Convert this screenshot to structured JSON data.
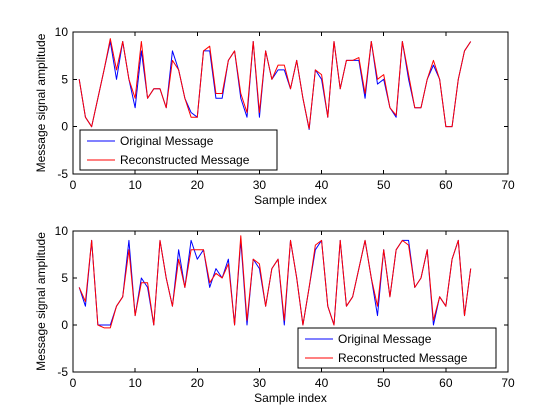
{
  "chart_data": [
    {
      "type": "line",
      "xlabel": "Sample index",
      "ylabel": "Message signal amplitude",
      "xlim": [
        0,
        70
      ],
      "ylim": [
        -5,
        10
      ],
      "xticks": [
        "0",
        "10",
        "20",
        "30",
        "40",
        "50",
        "60",
        "70"
      ],
      "yticks": [
        "-5",
        "0",
        "5",
        "10"
      ],
      "legend_position": "bottom-left",
      "series": [
        {
          "name": "Original Message",
          "color": "#0000ff",
          "x": [
            1,
            2,
            3,
            4,
            5,
            6,
            7,
            8,
            9,
            10,
            11,
            12,
            13,
            14,
            15,
            16,
            17,
            18,
            19,
            20,
            21,
            22,
            23,
            24,
            25,
            26,
            27,
            28,
            29,
            30,
            31,
            32,
            33,
            34,
            35,
            36,
            37,
            38,
            39,
            40,
            41,
            42,
            43,
            44,
            45,
            46,
            47,
            48,
            49,
            50,
            51,
            52,
            53,
            54,
            55,
            56,
            57,
            58,
            59,
            60,
            61,
            62,
            63,
            64
          ],
          "values": [
            5,
            1,
            0,
            3,
            6,
            9,
            5,
            9,
            5,
            2,
            8,
            3,
            4,
            4,
            2,
            8,
            6,
            3,
            1.5,
            1,
            8,
            8,
            3,
            3,
            7,
            8,
            3,
            1,
            9,
            1,
            8,
            5,
            6,
            6,
            4,
            7,
            3,
            -0.3,
            6,
            5,
            1,
            9,
            4,
            7,
            7,
            7,
            3,
            9,
            4.5,
            5,
            2,
            1,
            9,
            5,
            2,
            2,
            5,
            6.5,
            5,
            0,
            0,
            5,
            8,
            9
          ]
        },
        {
          "name": "Reconstructed Message",
          "color": "#ff0000",
          "x": [
            1,
            2,
            3,
            4,
            5,
            6,
            7,
            8,
            9,
            10,
            11,
            12,
            13,
            14,
            15,
            16,
            17,
            18,
            19,
            20,
            21,
            22,
            23,
            24,
            25,
            26,
            27,
            28,
            29,
            30,
            31,
            32,
            33,
            34,
            35,
            36,
            37,
            38,
            39,
            40,
            41,
            42,
            43,
            44,
            45,
            46,
            47,
            48,
            49,
            50,
            51,
            52,
            53,
            54,
            55,
            56,
            57,
            58,
            59,
            60,
            61,
            62,
            63,
            64
          ],
          "values": [
            5,
            1,
            0,
            3,
            6,
            9.3,
            6,
            9,
            5,
            3,
            9,
            3,
            4,
            4,
            2,
            7,
            6,
            3,
            1,
            1,
            8,
            8.5,
            3.5,
            3.5,
            7,
            8,
            3.5,
            1.5,
            9,
            1.5,
            8,
            5,
            6.5,
            6.5,
            4,
            7,
            3,
            -0.2,
            6,
            5.5,
            1,
            9,
            4,
            7,
            7,
            7.3,
            3.5,
            9,
            5,
            5.5,
            2,
            1.2,
            9,
            5.5,
            2,
            2,
            5,
            7,
            5,
            0,
            0,
            5,
            8,
            9
          ]
        }
      ]
    },
    {
      "type": "line",
      "xlabel": "Sample index",
      "ylabel": "Message signal amplitude",
      "xlim": [
        0,
        70
      ],
      "ylim": [
        -5,
        10
      ],
      "xticks": [
        "0",
        "10",
        "20",
        "30",
        "40",
        "50",
        "60",
        "70"
      ],
      "yticks": [
        "-5",
        "0",
        "5",
        "10"
      ],
      "legend_position": "bottom-right",
      "series": [
        {
          "name": "Original Message",
          "color": "#0000ff",
          "x": [
            1,
            2,
            3,
            4,
            5,
            6,
            7,
            8,
            9,
            10,
            11,
            12,
            13,
            14,
            15,
            16,
            17,
            18,
            19,
            20,
            21,
            22,
            23,
            24,
            25,
            26,
            27,
            28,
            29,
            30,
            31,
            32,
            33,
            34,
            35,
            36,
            37,
            38,
            39,
            40,
            41,
            42,
            43,
            44,
            45,
            46,
            47,
            48,
            49,
            50,
            51,
            52,
            53,
            54,
            55,
            56,
            57,
            58,
            59,
            60,
            61,
            62,
            63,
            64
          ],
          "values": [
            4,
            2,
            9,
            0,
            0,
            0,
            2,
            3,
            9,
            1,
            5,
            4,
            0,
            9,
            5,
            2,
            8,
            4,
            9,
            7,
            8,
            4,
            6,
            5,
            7,
            0,
            9,
            0,
            7,
            6,
            2,
            6,
            7,
            0,
            9,
            5,
            0,
            4,
            8,
            9,
            2,
            0,
            9,
            2,
            3,
            6,
            9,
            5,
            1,
            8,
            3,
            8,
            9,
            9,
            4,
            5,
            8,
            0,
            3,
            2,
            7,
            9,
            1,
            6
          ]
        },
        {
          "name": "Reconstructed Message",
          "color": "#ff0000",
          "x": [
            1,
            2,
            3,
            4,
            5,
            6,
            7,
            8,
            9,
            10,
            11,
            12,
            13,
            14,
            15,
            16,
            17,
            18,
            19,
            20,
            21,
            22,
            23,
            24,
            25,
            26,
            27,
            28,
            29,
            30,
            31,
            32,
            33,
            34,
            35,
            36,
            37,
            38,
            39,
            40,
            41,
            42,
            43,
            44,
            45,
            46,
            47,
            48,
            49,
            50,
            51,
            52,
            53,
            54,
            55,
            56,
            57,
            58,
            59,
            60,
            61,
            62,
            63,
            64
          ],
          "values": [
            4,
            2.5,
            9,
            0,
            -0.3,
            -0.3,
            2,
            3,
            8,
            1,
            4.5,
            4.5,
            0,
            9,
            5,
            2,
            7,
            4,
            8,
            8,
            8,
            4.5,
            5.5,
            5,
            6.5,
            0,
            9.5,
            0.5,
            7,
            6.5,
            2,
            6,
            7,
            0.5,
            9,
            5,
            0,
            4,
            8.5,
            9,
            2,
            0,
            9,
            2,
            3,
            6,
            9,
            5,
            2,
            8,
            3,
            8,
            9,
            8.5,
            4,
            5,
            8,
            0.5,
            3,
            2,
            7,
            9,
            1,
            6
          ]
        }
      ]
    }
  ]
}
